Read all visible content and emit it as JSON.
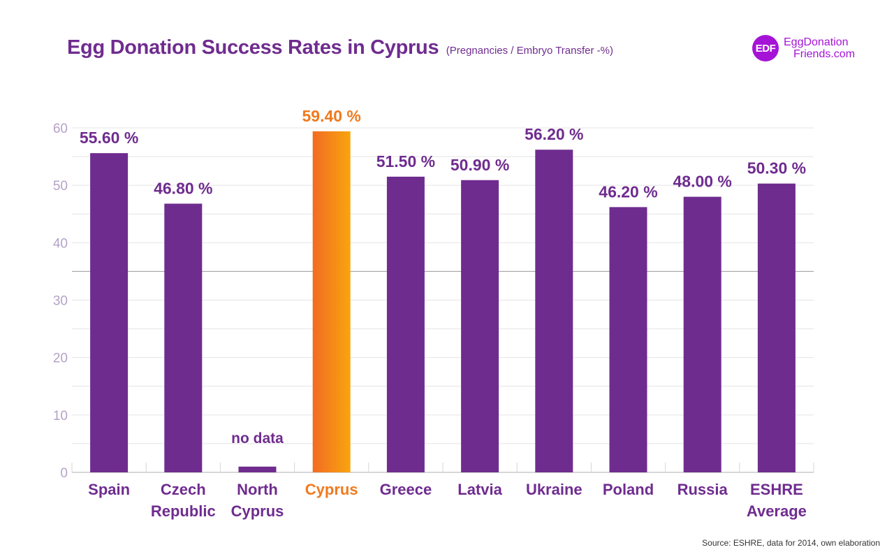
{
  "header": {
    "title": "Egg Donation Success Rates in Cyprus",
    "subtitle": "(Pregnancies / Embryo Transfer -%)"
  },
  "logo": {
    "initials": "EDF",
    "line1": "EggDonation",
    "line2": "Friends.com"
  },
  "source": "Source: ESHRE, data for 2014, own elaboration",
  "colors": {
    "bar": "#6f2c8f",
    "highlight_start": "#f26b22",
    "highlight_end": "#f8a50f",
    "axis_text": "#b5a2c8",
    "grid": "#e4e4e4",
    "label": "#6f2c8f",
    "highlight_label": "#f07a1e"
  },
  "chart_data": {
    "type": "bar",
    "title": "Egg Donation Success Rates in Cyprus",
    "subtitle": "(Pregnancies / Embryo Transfer -%)",
    "xlabel": "",
    "ylabel": "",
    "ylim": [
      0,
      60
    ],
    "yticks": [
      0,
      10,
      20,
      30,
      40,
      50,
      60
    ],
    "grid": true,
    "categories": [
      [
        "Spain"
      ],
      [
        "Czech",
        "Republic"
      ],
      [
        "North",
        "Cyprus"
      ],
      [
        "Cyprus"
      ],
      [
        "Greece"
      ],
      [
        "Latvia"
      ],
      [
        "Ukraine"
      ],
      [
        "Poland"
      ],
      [
        "Russia"
      ],
      [
        "ESHRE",
        "Average"
      ]
    ],
    "values": [
      55.6,
      46.8,
      1,
      59.4,
      51.5,
      50.9,
      56.2,
      46.2,
      48.0,
      50.3
    ],
    "value_labels": [
      "55.60 %",
      "46.80 %",
      "no data",
      "59.40 %",
      "51.50 %",
      "50.90 %",
      "56.20 %",
      "46.20 %",
      "48.00 %",
      "50.30 %"
    ],
    "highlight_index": 3
  }
}
